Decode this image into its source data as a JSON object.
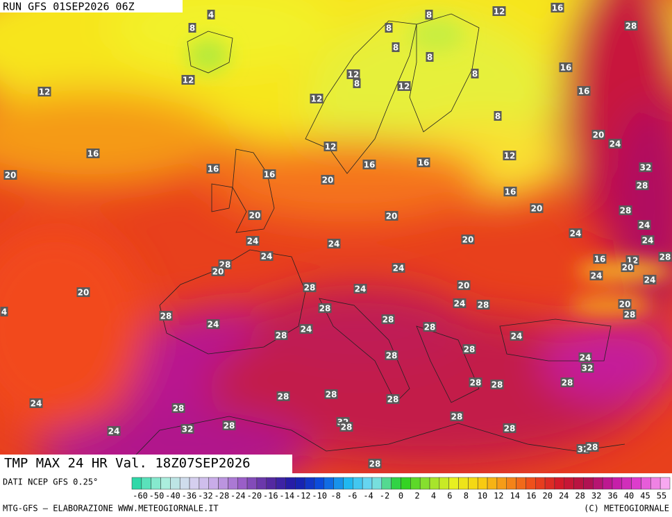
{
  "header": {
    "run": "RUN GFS 01SEP2026 06Z"
  },
  "map": {
    "title": "TMP MAX 24 HR Val. 18Z07SEP2026",
    "contour_labels": [
      4,
      8,
      8,
      12,
      16,
      28,
      8,
      8,
      8,
      8,
      12,
      12,
      12,
      8,
      12,
      12,
      16,
      16,
      8,
      16,
      12,
      16,
      16,
      12,
      20,
      24,
      32,
      20,
      16,
      16,
      20,
      16,
      28,
      20,
      28,
      20,
      20,
      24,
      24,
      24,
      24,
      24,
      20,
      24,
      28,
      20,
      16,
      12,
      20,
      28,
      24,
      24,
      24,
      20,
      28,
      24,
      20,
      28,
      24,
      28,
      20,
      28,
      4,
      28,
      24,
      28,
      24,
      28,
      28,
      24,
      28,
      28,
      24,
      32,
      28,
      28,
      28,
      28,
      28,
      28,
      24,
      28,
      28,
      32,
      28,
      32,
      28,
      24,
      28,
      32,
      28,
      28
    ]
  },
  "legend": {
    "source": "DATI NCEP GFS 0.25°",
    "scale": [
      -60,
      -50,
      -40,
      -36,
      -32,
      -28,
      -24,
      -20,
      -16,
      -14,
      -12,
      -10,
      -8,
      -6,
      -4,
      -2,
      0,
      2,
      4,
      6,
      8,
      10,
      12,
      14,
      16,
      20,
      24,
      28,
      32,
      36,
      40,
      45,
      55
    ]
  },
  "footer": {
    "credit": "MTG-GFS — ELABORAZIONE WWW.METEOGIORNALE.IT",
    "copyright": "(C) METEOGIORNALE"
  }
}
